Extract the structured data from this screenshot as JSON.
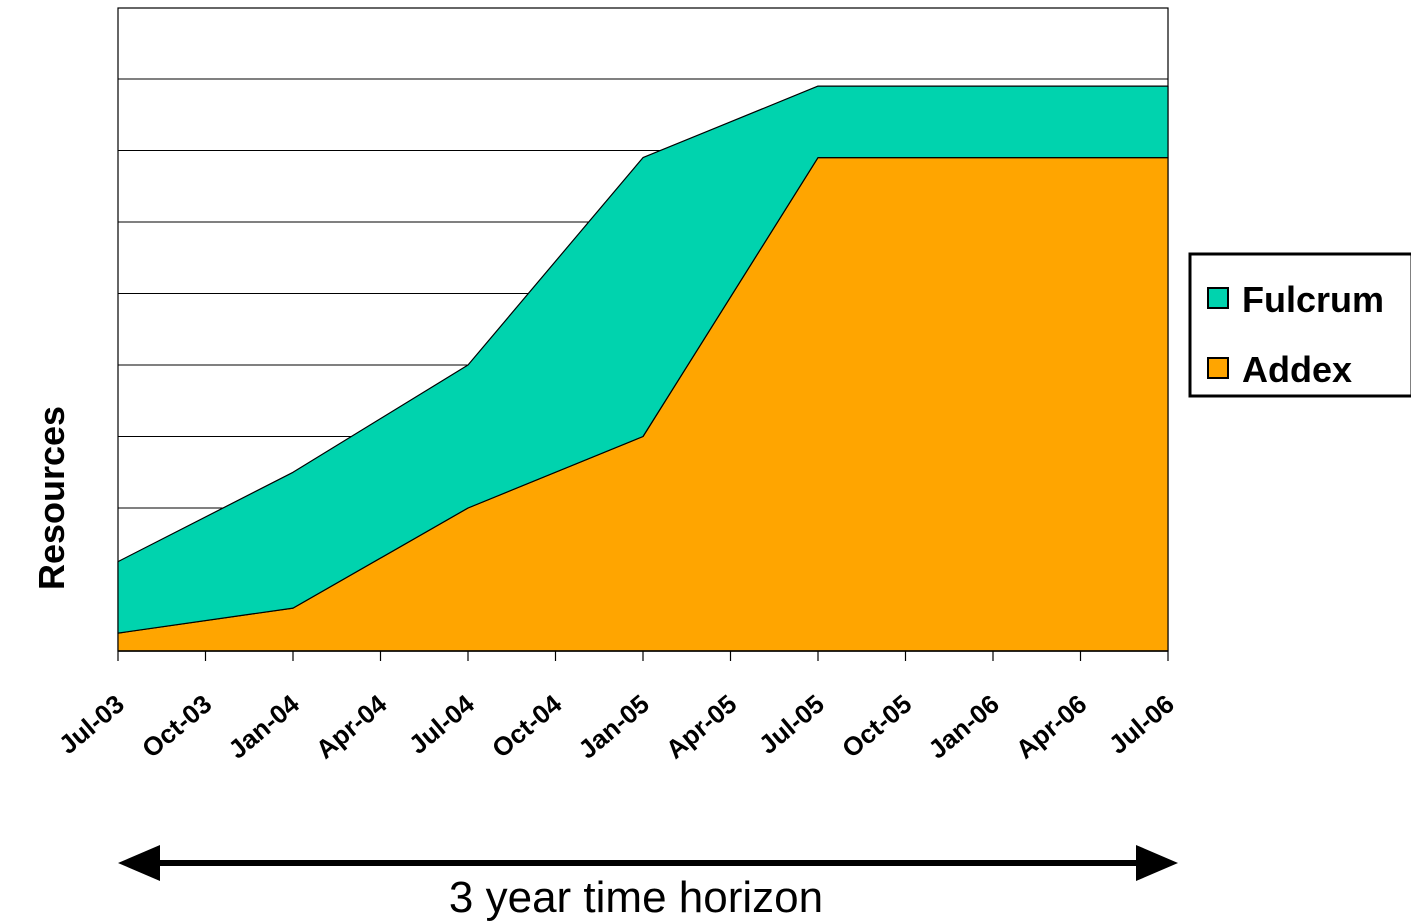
{
  "chart_data": {
    "type": "area",
    "stacked": true,
    "ylabel": "Resources",
    "xlabel": "",
    "categories": [
      "Jul-03",
      "Oct-03",
      "Jan-04",
      "Apr-04",
      "Jul-04",
      "Oct-04",
      "Jan-05",
      "Apr-05",
      "Jul-05",
      "Oct-05",
      "Jan-06",
      "Apr-06",
      "Jul-06"
    ],
    "series": [
      {
        "name": "Addex",
        "color": "#FFA500",
        "points": [
          [
            0,
            0.25
          ],
          [
            2,
            0.6
          ],
          [
            4,
            2.0
          ],
          [
            6,
            3.0
          ],
          [
            8,
            6.9
          ],
          [
            12,
            6.9
          ]
        ]
      },
      {
        "name": "Fulcrum",
        "color": "#00D3AE",
        "points": [
          [
            0,
            1.0
          ],
          [
            2,
            1.9
          ],
          [
            4,
            2.0
          ],
          [
            6,
            3.9
          ],
          [
            8,
            1.0
          ],
          [
            12,
            1.0
          ]
        ]
      }
    ],
    "ylim": [
      0,
      9
    ],
    "grid": true,
    "legend_position": "right",
    "annotation": {
      "arrow": "double-headed",
      "text": "3 year time horizon"
    }
  }
}
